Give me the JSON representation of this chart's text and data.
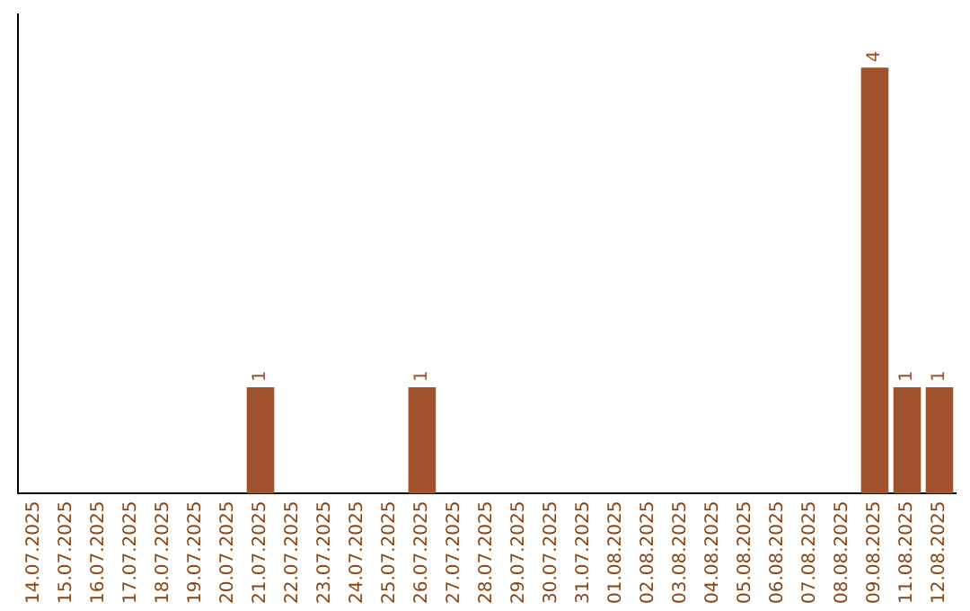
{
  "chart_data": {
    "type": "bar",
    "categories": [
      "14.07.2025",
      "15.07.2025",
      "16.07.2025",
      "17.07.2025",
      "18.07.2025",
      "19.07.2025",
      "20.07.2025",
      "21.07.2025",
      "22.07.2025",
      "23.07.2025",
      "24.07.2025",
      "25.07.2025",
      "26.07.2025",
      "27.07.2025",
      "28.07.2025",
      "29.07.2025",
      "30.07.2025",
      "31.07.2025",
      "01.08.2025",
      "02.08.2025",
      "03.08.2025",
      "04.08.2025",
      "05.08.2025",
      "06.08.2025",
      "07.08.2025",
      "08.08.2025",
      "09.08.2025",
      "11.08.2025",
      "12.08.2025"
    ],
    "values": [
      0,
      0,
      0,
      0,
      0,
      0,
      0,
      1,
      0,
      0,
      0,
      0,
      1,
      0,
      0,
      0,
      0,
      0,
      0,
      0,
      0,
      0,
      0,
      0,
      0,
      0,
      4,
      1,
      1
    ],
    "value_labels": [
      null,
      null,
      null,
      null,
      null,
      null,
      null,
      "1",
      null,
      null,
      null,
      null,
      "1",
      null,
      null,
      null,
      null,
      null,
      null,
      null,
      null,
      null,
      null,
      null,
      null,
      null,
      "4",
      "1",
      "1"
    ],
    "color": "#a0522d",
    "grid": false,
    "legend": false,
    "tick_labels": "x"
  }
}
